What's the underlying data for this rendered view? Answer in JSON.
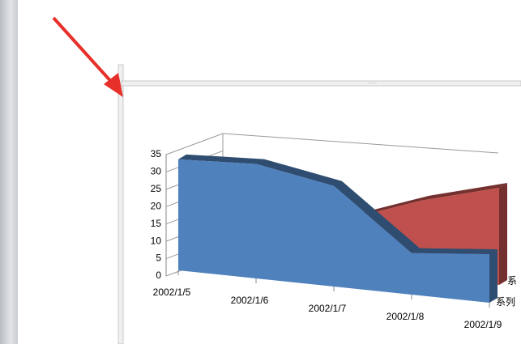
{
  "chart_data": {
    "type": "area3d",
    "categories": [
      "2002/1/5",
      "2002/1/6",
      "2002/1/7",
      "2002/1/8",
      "2002/1/9"
    ],
    "series": [
      {
        "name": "系",
        "color": "#c0504d",
        "values": [
          8,
          10,
          14,
          22,
          28
        ]
      },
      {
        "name": "系列",
        "color": "#4f81bd",
        "values": [
          32,
          33,
          29,
          12,
          14
        ]
      }
    ],
    "ylim": [
      0,
      35
    ],
    "yticks": [
      0,
      5,
      10,
      15,
      20,
      25,
      30,
      35
    ],
    "grid": true
  }
}
